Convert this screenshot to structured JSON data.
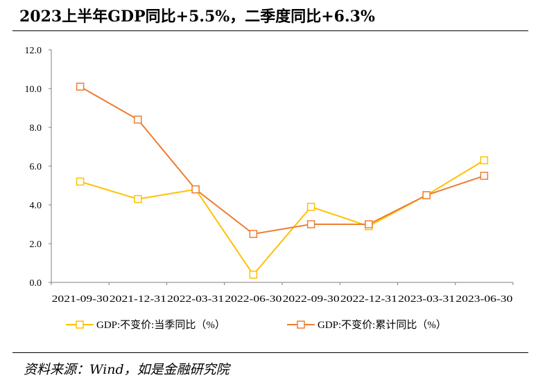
{
  "title": "2023上半年GDP同比+5.5%，二季度同比+6.3%",
  "source": "资料来源：Wind，如是金融研究院",
  "chart_data": {
    "type": "line",
    "categories": [
      "2021-09-30",
      "2021-12-31",
      "2022-03-31",
      "2022-06-30",
      "2022-09-30",
      "2022-12-31",
      "2023-03-31",
      "2023-06-30"
    ],
    "ylim": [
      0,
      12
    ],
    "yticks": [
      "0.0",
      "2.0",
      "4.0",
      "6.0",
      "8.0",
      "10.0",
      "12.0"
    ],
    "grid": false,
    "legend_position": "bottom",
    "series": [
      {
        "name": "GDP:不变价:当季同比（%）",
        "color": "#FFC000",
        "values": [
          5.2,
          4.3,
          4.8,
          0.4,
          3.9,
          2.9,
          4.5,
          6.3
        ]
      },
      {
        "name": "GDP:不变价:累计同比（%）",
        "color": "#ED7D31",
        "values": [
          10.1,
          8.4,
          4.8,
          2.5,
          3.0,
          3.0,
          4.5,
          5.5
        ]
      }
    ]
  }
}
